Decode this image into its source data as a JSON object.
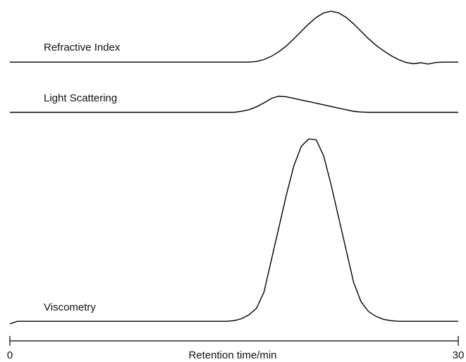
{
  "chart_data": {
    "type": "line",
    "x_label": "Retention time/min",
    "x": [
      0,
      0.5,
      1,
      1.5,
      2,
      2.5,
      3,
      3.5,
      4,
      4.5,
      5,
      5.5,
      6,
      6.5,
      7,
      7.5,
      8,
      8.5,
      9,
      9.5,
      10,
      10.5,
      11,
      11.5,
      12,
      12.5,
      13,
      13.5,
      14,
      14.5,
      15,
      15.5,
      16,
      16.5,
      17,
      17.5,
      18,
      18.5,
      19,
      19.5,
      20,
      20.5,
      21,
      21.5,
      22,
      22.5,
      23,
      23.5,
      24,
      24.5,
      25,
      25.5,
      26,
      26.5,
      27,
      27.5,
      28,
      28.5,
      29,
      29.5,
      30
    ],
    "xlim": [
      0,
      30
    ],
    "xticks": [
      0,
      30
    ],
    "ylim": [
      0,
      100
    ],
    "series": [
      {
        "name": "Refractive Index",
        "color": "#000000",
        "values": [
          83,
          83,
          83,
          83,
          83,
          83,
          83,
          83,
          83,
          83,
          83,
          83,
          83,
          83,
          83,
          83,
          83,
          83,
          83,
          83,
          83,
          83,
          83,
          83,
          83,
          83,
          83,
          83,
          83,
          83,
          83,
          83,
          83,
          83.2,
          83.8,
          84.8,
          86.2,
          88,
          90.2,
          92.5,
          94.8,
          96.8,
          98.2,
          98.7,
          98.2,
          96.8,
          94.8,
          92.5,
          90.2,
          88.2,
          86.5,
          85,
          83.8,
          82.9,
          82.5,
          82.8,
          82.4,
          82.9,
          83,
          83,
          83
        ]
      },
      {
        "name": "Light Scattering",
        "color": "#000000",
        "values": [
          67.5,
          67.5,
          67.5,
          67.5,
          67.5,
          67.5,
          67.5,
          67.5,
          67.5,
          67.5,
          67.5,
          67.5,
          67.5,
          67.5,
          67.5,
          67.5,
          67.5,
          67.5,
          67.5,
          67.5,
          67.5,
          67.5,
          67.5,
          67.5,
          67.5,
          67.5,
          67.5,
          67.5,
          67.5,
          67.5,
          67.5,
          67.8,
          68.3,
          69.2,
          70.4,
          71.8,
          72.5,
          72.3,
          71.8,
          71.3,
          70.8,
          70.3,
          69.8,
          69.3,
          68.8,
          68.3,
          67.8,
          67.6,
          67.5,
          67.5,
          67.5,
          67.5,
          67.5,
          67.5,
          67.5,
          67.5,
          67.5,
          67.5,
          67.5,
          67.5,
          67.5
        ]
      },
      {
        "name": "Viscometry",
        "color": "#000000",
        "values": [
          2.2,
          3.0,
          3,
          3,
          3,
          3,
          3,
          3,
          3,
          3,
          3,
          3,
          3,
          3,
          3,
          3,
          3,
          3,
          3,
          3,
          3,
          3,
          3,
          3,
          3,
          3,
          3,
          3,
          3,
          3,
          3.2,
          3.8,
          5,
          7,
          12,
          22,
          32,
          42,
          51,
          57,
          59.3,
          59,
          54,
          45,
          35,
          25,
          15,
          9,
          6,
          4.5,
          3.6,
          3.2,
          3,
          3,
          3,
          3,
          3,
          3,
          3,
          3,
          3
        ]
      }
    ]
  }
}
